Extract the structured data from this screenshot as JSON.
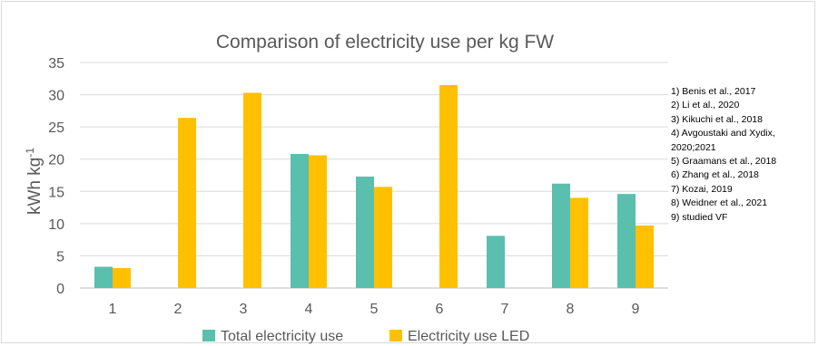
{
  "chart_data": {
    "type": "bar",
    "title": "Comparison of electricity use per kg FW",
    "ylabel": "kWh kg",
    "ylabel_sup": "-1",
    "xlabel": "",
    "categories": [
      "1",
      "2",
      "3",
      "4",
      "5",
      "6",
      "7",
      "8",
      "9"
    ],
    "ylim": [
      0,
      35
    ],
    "yticks": [
      "0",
      "5",
      "10",
      "15",
      "20",
      "25",
      "30",
      "35"
    ],
    "grid": true,
    "legend_position": "bottom",
    "series": [
      {
        "name": "Total electricity use",
        "color": "#5bbfad",
        "values": [
          3.3,
          0,
          0,
          20.8,
          17.3,
          0,
          8.1,
          16.2,
          14.6
        ]
      },
      {
        "name": "Electricity use LED",
        "color": "#ffc000",
        "values": [
          3.1,
          26.4,
          30.3,
          20.6,
          15.7,
          31.5,
          0,
          14.0,
          9.7
        ]
      }
    ]
  },
  "references": [
    "1) Benis et al., 2017",
    "2) Li et al., 2020",
    "3) Kikuchi et al., 2018",
    "4) Avgoustaki and Xydix, 2020;2021",
    "5) Graamans et al., 2018",
    "6) Zhang et al., 2018",
    "7) Kozai, 2019",
    "8) Weidner et al., 2021",
    "9) studied VF"
  ]
}
